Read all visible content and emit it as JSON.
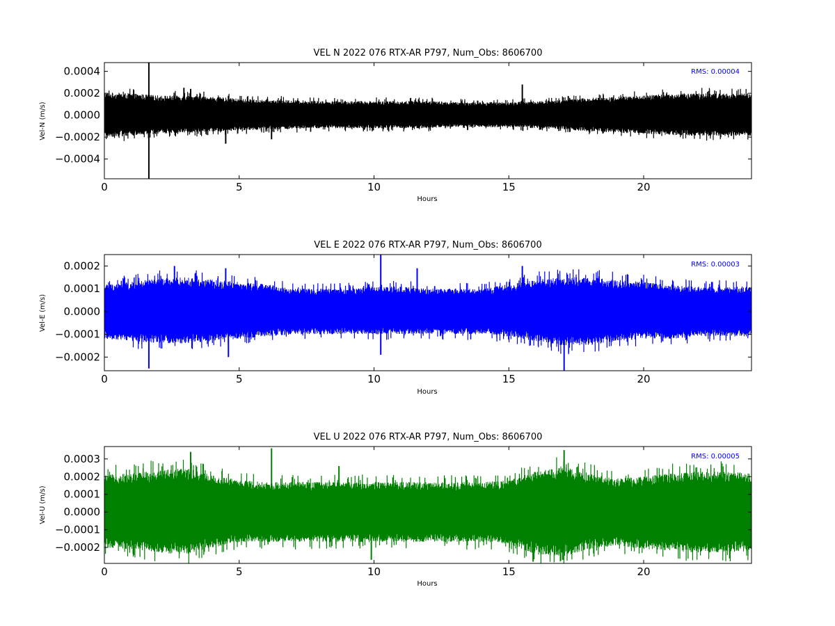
{
  "chart_data": [
    {
      "type": "line",
      "title": "VEL N 2022 076 RTX-AR  P797, Num_Obs: 8606700",
      "xlabel": "Hours",
      "ylabel": "Vel-N (m/s)",
      "xlim": [
        0,
        24
      ],
      "ylim": [
        -0.00058,
        0.00048
      ],
      "xticks": [
        0,
        5,
        10,
        15,
        20
      ],
      "xtick_labels": [
        "0",
        "5",
        "10",
        "15",
        "20"
      ],
      "yticks": [
        -0.0004,
        -0.0002,
        0.0,
        0.0002,
        0.0004
      ],
      "ytick_labels": [
        "−0.0004",
        "−0.0002",
        "0.0000",
        "0.0002",
        "0.0004"
      ],
      "rms_text": "RMS:  0.00004",
      "rms_color": "#0000ff",
      "line_color": "#000000",
      "grid": false,
      "envelope": {
        "x": [
          0,
          1,
          2,
          3,
          4,
          5,
          6,
          7,
          8,
          9,
          10,
          11,
          12,
          13,
          14,
          15,
          16,
          17,
          18,
          19,
          20,
          21,
          22,
          23,
          24
        ],
        "upper": [
          0.00021,
          0.0002,
          0.00018,
          0.00018,
          0.00017,
          0.00015,
          0.00014,
          0.00014,
          0.00013,
          0.00013,
          0.00013,
          0.00013,
          0.00013,
          0.00012,
          0.00012,
          0.00012,
          0.00013,
          0.00014,
          0.00016,
          0.00017,
          0.00018,
          0.0002,
          0.0002,
          0.0002,
          0.0002
        ],
        "lower": [
          -0.0002,
          -0.00019,
          -0.00017,
          -0.00016,
          -0.00015,
          -0.00014,
          -0.00013,
          -0.00013,
          -0.00012,
          -0.00012,
          -0.00012,
          -0.00012,
          -0.00012,
          -0.00011,
          -0.00011,
          -0.00011,
          -0.00012,
          -0.00013,
          -0.00015,
          -0.00016,
          -0.00017,
          -0.00018,
          -0.00019,
          -0.00019,
          -0.00019
        ]
      },
      "spikes": [
        {
          "x": 1.65,
          "y0": -0.00058,
          "y1": 0.00048
        },
        {
          "x": 2.95,
          "y0": 0.0,
          "y1": 0.00025
        },
        {
          "x": 3.2,
          "y0": 0.0,
          "y1": 0.00024
        },
        {
          "x": 4.5,
          "y0": 0.0,
          "y1": -0.00026
        },
        {
          "x": 6.2,
          "y0": 0.0,
          "y1": -0.00022
        },
        {
          "x": 15.5,
          "y0": 0.0,
          "y1": 0.00028
        }
      ]
    },
    {
      "type": "line",
      "title": "VEL E 2022 076 RTX-AR  P797, Num_Obs: 8606700",
      "xlabel": "Hours",
      "ylabel": "Vel-E (m/s)",
      "xlim": [
        0,
        24
      ],
      "ylim": [
        -0.00026,
        0.00025
      ],
      "xticks": [
        0,
        5,
        10,
        15,
        20
      ],
      "xtick_labels": [
        "0",
        "5",
        "10",
        "15",
        "20"
      ],
      "yticks": [
        -0.0002,
        -0.0001,
        0.0,
        0.0001,
        0.0002
      ],
      "ytick_labels": [
        "−0.0002",
        "−0.0001",
        "0.0000",
        "0.0001",
        "0.0002"
      ],
      "rms_text": "RMS:  0.00003",
      "rms_color": "#0000ff",
      "line_color": "#0000ff",
      "grid": false,
      "envelope": {
        "x": [
          0,
          1,
          2,
          3,
          4,
          5,
          6,
          7,
          8,
          9,
          10,
          11,
          12,
          13,
          14,
          15,
          16,
          17,
          18,
          19,
          20,
          21,
          22,
          23,
          24
        ],
        "upper": [
          0.00012,
          0.00013,
          0.000145,
          0.00015,
          0.00014,
          0.00013,
          0.00012,
          0.0001,
          0.0001,
          0.0001,
          0.00011,
          0.00011,
          0.0001,
          0.0001,
          0.0001,
          0.00012,
          0.00014,
          0.00015,
          0.00015,
          0.00014,
          0.00013,
          0.00012,
          0.00011,
          0.00011,
          0.00011
        ],
        "lower": [
          -0.00012,
          -0.00013,
          -0.00014,
          -0.00014,
          -0.00013,
          -0.00012,
          -0.00011,
          -0.0001,
          -0.0001,
          -0.0001,
          -0.0001,
          -0.0001,
          -0.0001,
          -0.0001,
          -0.0001,
          -0.00011,
          -0.00013,
          -0.00015,
          -0.00015,
          -0.00013,
          -0.00012,
          -0.00012,
          -0.00011,
          -0.00011,
          -0.00011
        ]
      },
      "spikes": [
        {
          "x": 1.65,
          "y0": 0.0,
          "y1": -0.00025
        },
        {
          "x": 2.6,
          "y0": 0.0,
          "y1": 0.0002
        },
        {
          "x": 4.5,
          "y0": 0.0,
          "y1": 0.00019
        },
        {
          "x": 4.6,
          "y0": 0.0,
          "y1": -0.0002
        },
        {
          "x": 10.25,
          "y0": -0.00019,
          "y1": 0.00025
        },
        {
          "x": 11.6,
          "y0": 0.0,
          "y1": 0.00019
        },
        {
          "x": 15.5,
          "y0": 0.0,
          "y1": 0.0002
        },
        {
          "x": 17.05,
          "y0": 0.0,
          "y1": -0.00026
        }
      ]
    },
    {
      "type": "line",
      "title": "VEL U 2022 076 RTX-AR  P797, Num_Obs: 8606700",
      "xlabel": "Hours",
      "ylabel": "Vel-U (m/s)",
      "xlim": [
        0,
        24
      ],
      "ylim": [
        -0.00029,
        0.00037
      ],
      "xticks": [
        0,
        5,
        10,
        15,
        20
      ],
      "xtick_labels": [
        "0",
        "5",
        "10",
        "15",
        "20"
      ],
      "yticks": [
        -0.0002,
        -0.0001,
        0.0,
        0.0001,
        0.0002,
        0.0003
      ],
      "ytick_labels": [
        "−0.0002",
        "−0.0001",
        "0.0000",
        "0.0001",
        "0.0002",
        "0.0003"
      ],
      "rms_text": "RMS:  0.00005",
      "rms_color": "#0000ff",
      "line_color": "#008000",
      "grid": false,
      "envelope": {
        "x": [
          0,
          1,
          2,
          3,
          4,
          5,
          6,
          7,
          8,
          9,
          10,
          11,
          12,
          13,
          14,
          15,
          16,
          17,
          18,
          19,
          20,
          21,
          22,
          23,
          24
        ],
        "upper": [
          0.00021,
          0.00022,
          0.00024,
          0.00025,
          0.00021,
          0.00018,
          0.00017,
          0.00017,
          0.00017,
          0.00017,
          0.00017,
          0.00017,
          0.00017,
          0.00017,
          0.00017,
          0.00018,
          0.00023,
          0.00026,
          0.00022,
          0.00019,
          0.0002,
          0.00022,
          0.00023,
          0.00023,
          0.00022
        ],
        "lower": [
          -0.0002,
          -0.00021,
          -0.00023,
          -0.00024,
          -0.0002,
          -0.00017,
          -0.00017,
          -0.00017,
          -0.00017,
          -0.00017,
          -0.00017,
          -0.00017,
          -0.00017,
          -0.00017,
          -0.00017,
          -0.00018,
          -0.00024,
          -0.00025,
          -0.00021,
          -0.00019,
          -0.00021,
          -0.00022,
          -0.00023,
          -0.00023,
          -0.00022
        ]
      },
      "spikes": [
        {
          "x": 3.2,
          "y0": 0.0,
          "y1": 0.00034
        },
        {
          "x": 6.2,
          "y0": 0.0,
          "y1": 0.00036
        },
        {
          "x": 8.7,
          "y0": 0.0,
          "y1": 0.00026
        },
        {
          "x": 9.9,
          "y0": 0.0,
          "y1": -0.00027
        },
        {
          "x": 15.9,
          "y0": 0.0,
          "y1": -0.00028
        },
        {
          "x": 17.05,
          "y0": 0.0,
          "y1": 0.00035
        },
        {
          "x": 17.0,
          "y0": 0.0,
          "y1": -0.00027
        }
      ]
    }
  ]
}
